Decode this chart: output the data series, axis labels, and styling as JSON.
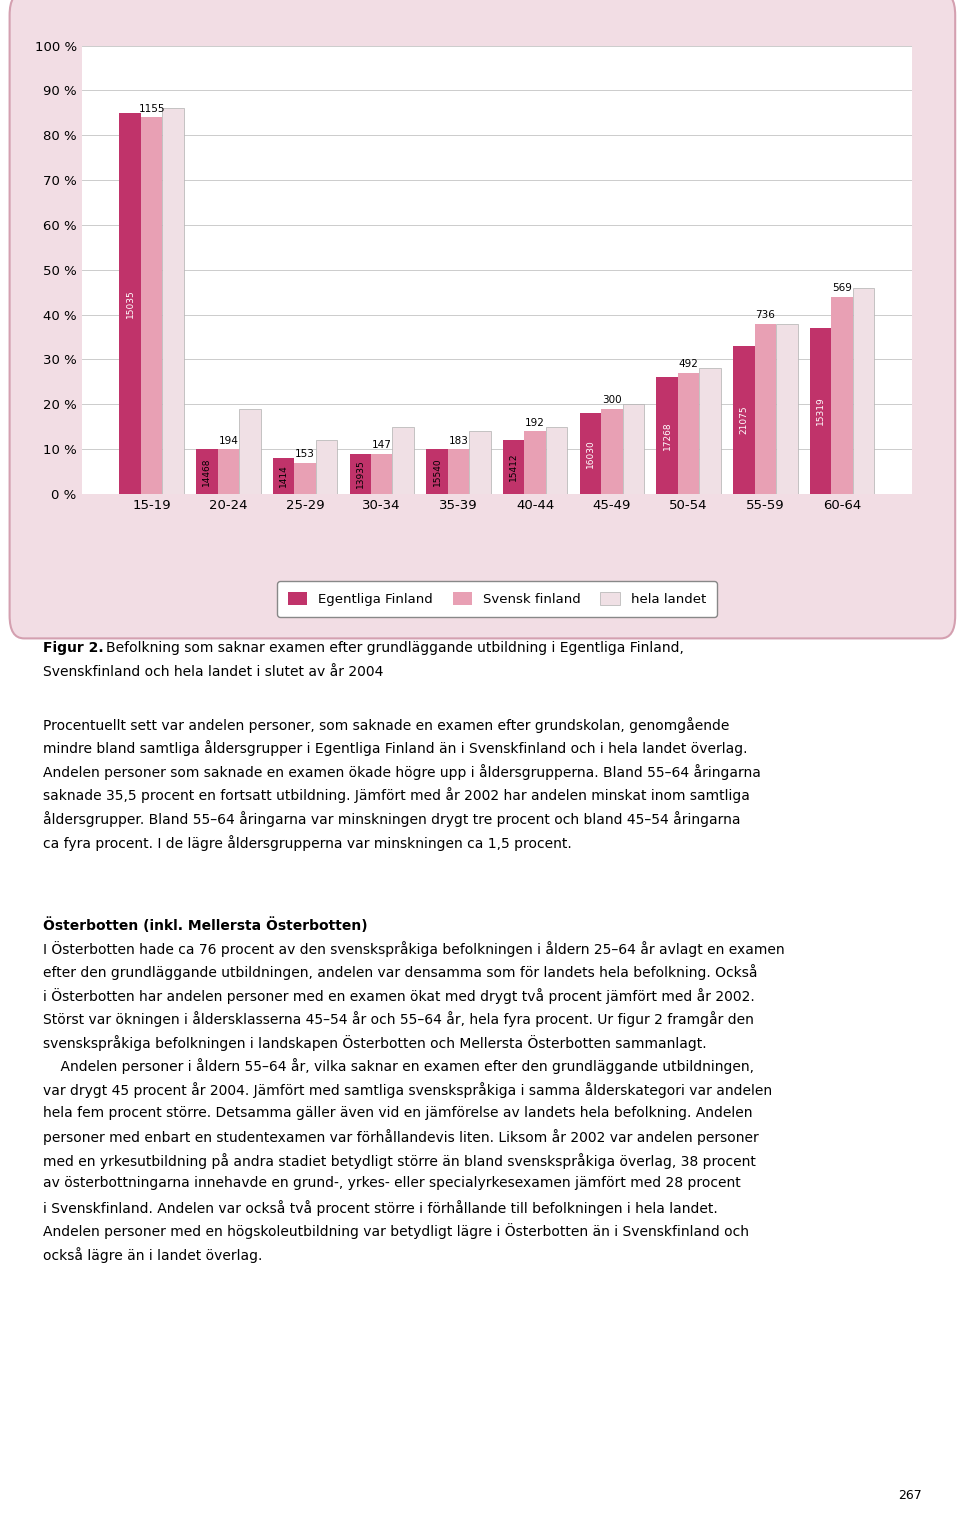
{
  "categories": [
    "15-19",
    "20-24",
    "25-29",
    "30-34",
    "35-39",
    "40-44",
    "45-49",
    "50-54",
    "55-59",
    "60-64"
  ],
  "egentliga_pct": [
    85,
    10,
    8,
    9,
    10,
    12,
    18,
    26,
    33,
    37
  ],
  "svensk_pct": [
    84,
    10,
    7,
    9,
    10,
    14,
    19,
    27,
    38,
    44
  ],
  "hela_pct": [
    86,
    19,
    12,
    15,
    14,
    15,
    20,
    28,
    38,
    46
  ],
  "egentliga_n": [
    "15035",
    "14468",
    "1414",
    "13935",
    "15540",
    "15412",
    "16030",
    "17268",
    "21075",
    "15319"
  ],
  "svensk_n": [
    "1155",
    "194",
    "153",
    "147",
    "183",
    "192",
    "300",
    "492",
    "736",
    "569"
  ],
  "color_egentliga": "#c0336a",
  "color_svensk": "#e8a0b4",
  "color_hela": "#f0e0e5",
  "bar_width": 0.28,
  "ylim": [
    0,
    100
  ],
  "yticks": [
    0,
    10,
    20,
    30,
    40,
    50,
    60,
    70,
    80,
    90,
    100
  ],
  "ytick_labels": [
    "0 %",
    "10 %",
    "20 %",
    "30 %",
    "40 %",
    "50 %",
    "60 %",
    "70 %",
    "80 %",
    "90 %",
    "100 %"
  ],
  "legend_labels": [
    "Egentliga Finland",
    "Svensk finland",
    "hela landet"
  ],
  "outer_box_facecolor": "#f2dde4",
  "outer_box_edgecolor": "#d4a0b0",
  "plot_bg": "#ffffff",
  "fig_bg": "#ffffff",
  "figur2_bold": "Figur 2.",
  "figur2_rest": " Befolkning som saknar examen efter grundläggande utbildning i Egentliga Finland,",
  "figur2_line2": "Svenskfinland och hela landet i slutet av år 2004",
  "para1": [
    "Procentuellt sett var andelen personer, som saknade en examen efter grundskolan, genomgående",
    "mindre bland samtliga åldersgrupper i Egentliga Finland än i Svenskfinland och i hela landet överlag.",
    "Andelen personer som saknade en examen ökade högre upp i åldersgrupperna. Bland 55–64 åringarna",
    "saknade 35,5 procent en fortsatt utbildning. Jämfört med år 2002 har andelen minskat inom samtliga",
    "åldersgrupper. Bland 55–64 åringarna var minskningen drygt tre procent och bland 45–54 åringarna",
    "ca fyra procent. I de lägre åldersgrupperna var minskningen ca 1,5 procent."
  ],
  "osterbotten_heading": "Österbotten (inkl. Mellersta Österbotten)",
  "para2": [
    "I Österbotten hade ca 76 procent av den svenskspråkiga befolkningen i åldern 25–64 år avlagt en examen",
    "efter den grundläggande utbildningen, andelen var densamma som för landets hela befolkning. Också",
    "i Österbotten har andelen personer med en examen ökat med drygt två procent jämfört med år 2002.",
    "Störst var ökningen i åldersklasserna 45–54 år och 55–64 år, hela fyra procent. Ur figur 2 framgår den",
    "svenskspråkiga befolkningen i landskapen Österbotten och Mellersta Österbotten sammanlagt.",
    "    Andelen personer i åldern 55–64 år, vilka saknar en examen efter den grundläggande utbildningen,",
    "var drygt 45 procent år 2004. Jämfört med samtliga svenskspråkiga i samma ålderskategori var andelen",
    "hela fem procent större. Detsamma gäller även vid en jämförelse av landets hela befolkning. Andelen",
    "personer med enbart en studentexamen var förhållandevis liten. Liksom år 2002 var andelen personer",
    "med en yrkesutbildning på andra stadiet betydligt större än bland svenskspråkiga överlag, 38 procent",
    "av österbottningarna innehavde en grund-, yrkes- eller specialyrkesexamen jämfört med 28 procent",
    "i Svenskfinland. Andelen var också två procent större i förhållande till befolkningen i hela landet.",
    "Andelen personer med en högskoleutbildning var betydligt lägre i Österbotten än i Svenskfinland och",
    "också lägre än i landet överlag."
  ],
  "page_number": "267"
}
